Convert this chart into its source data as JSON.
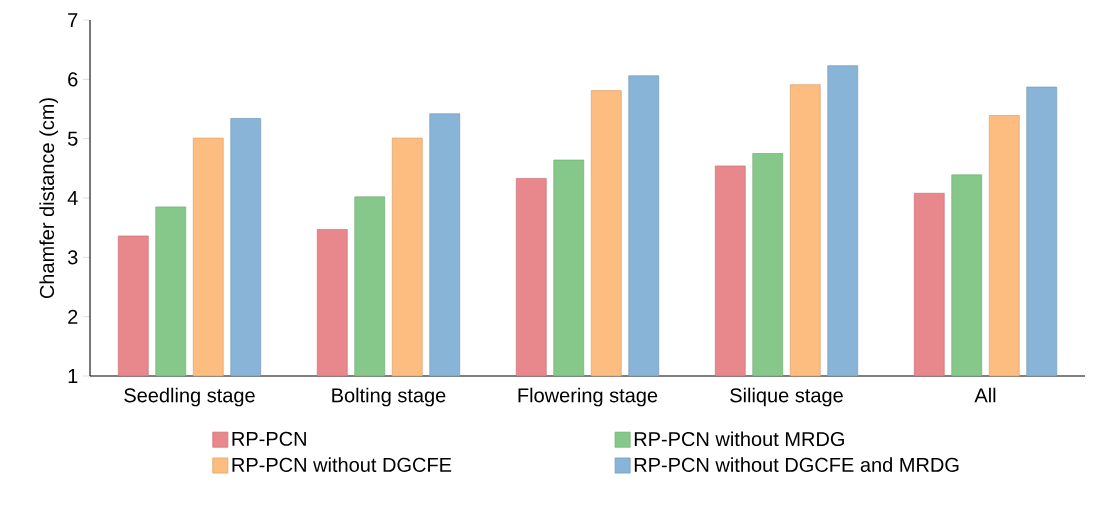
{
  "chart_data": {
    "type": "bar",
    "ylabel": "Chamfer distance (cm)",
    "categories": [
      "Seedling stage",
      "Bolting stage",
      "Flowering stage",
      "Silique stage",
      "All"
    ],
    "series": [
      {
        "name": "RP-PCN",
        "color": "#e8878c",
        "values": [
          3.36,
          3.47,
          4.33,
          4.54,
          4.08
        ]
      },
      {
        "name": "RP-PCN without MRDG",
        "color": "#86c88a",
        "values": [
          3.85,
          4.02,
          4.64,
          4.75,
          4.39
        ]
      },
      {
        "name": "RP-PCN without DGCFE",
        "color": "#fdbc80",
        "values": [
          5.01,
          5.01,
          5.81,
          5.91,
          5.39
        ]
      },
      {
        "name": "RP-PCN without DGCFE and MRDG",
        "color": "#88b4d8",
        "values": [
          5.34,
          5.42,
          6.06,
          6.23,
          5.87
        ]
      }
    ],
    "ylim": [
      1,
      7
    ],
    "yticks": [
      1,
      2,
      3,
      4,
      5,
      6,
      7
    ],
    "grid": false,
    "legend": "bottom"
  }
}
